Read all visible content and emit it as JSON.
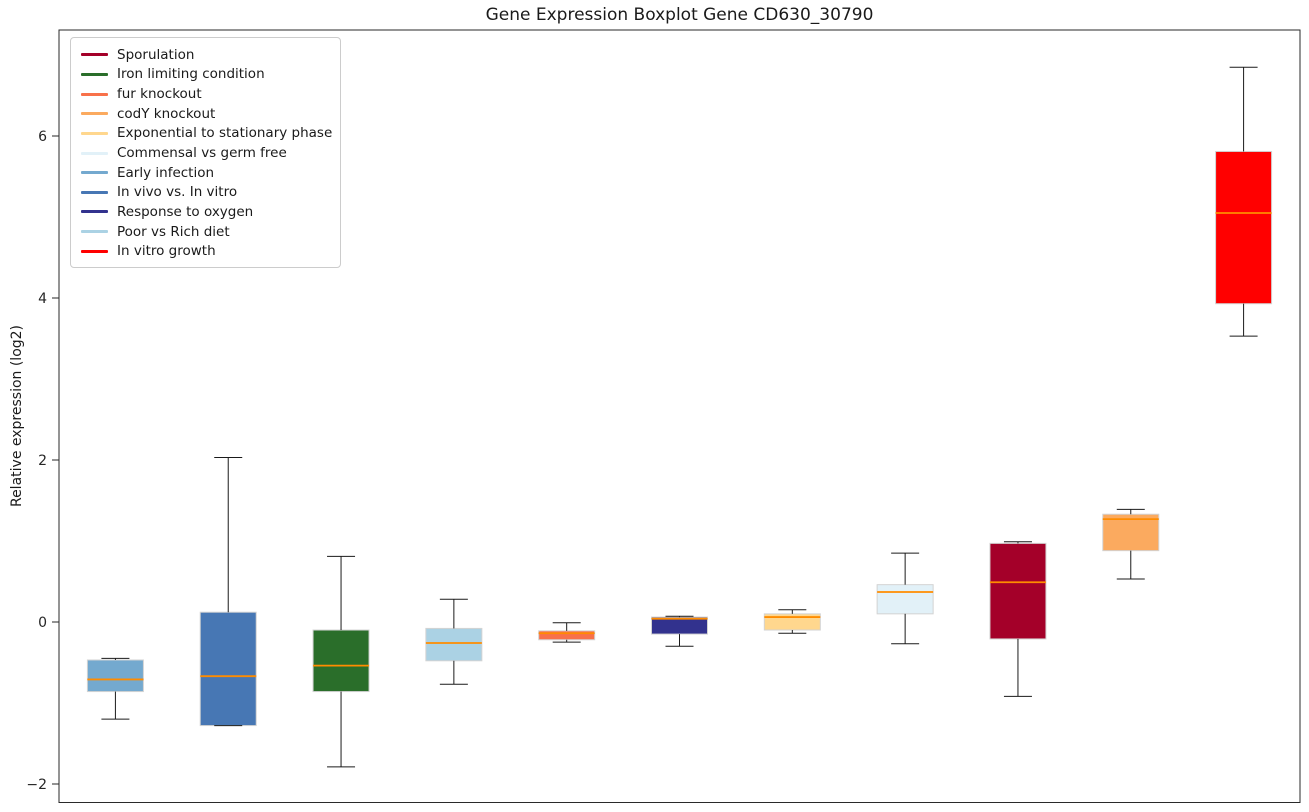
{
  "chart_data": {
    "type": "boxplot",
    "title": "Gene Expression Boxplot Gene CD630_30790",
    "ylabel": "Relative expression (log2)",
    "xlabel": "",
    "x_tick_labels": [],
    "grid": false,
    "ylim": [
      -2.23,
      7.31
    ],
    "yticks": [
      {
        "value": 6,
        "label": "6"
      },
      {
        "value": 4,
        "label": "4"
      },
      {
        "value": 2,
        "label": "2"
      },
      {
        "value": 0,
        "label": "0"
      },
      {
        "value": -2,
        "label": "−2"
      }
    ],
    "style": {
      "median_color": "#ff8c00",
      "box_edge_color": "#d3d3d3",
      "whisker_color": "#1a1a1a",
      "spine_color": "#2a2a2a",
      "tick_label_color": "#262626",
      "background": "#ffffff"
    },
    "legend": {
      "position": "upper left",
      "items": [
        {
          "label": "Sporulation",
          "color": "#a40029"
        },
        {
          "label": "Iron limiting condition",
          "color": "#2a6e2a"
        },
        {
          "label": "fur knockout",
          "color": "#f8714a"
        },
        {
          "label": "codY knockout",
          "color": "#fbaa5f"
        },
        {
          "label": "Exponential to stationary phase",
          "color": "#ffd78e"
        },
        {
          "label": "Commensal vs germ free",
          "color": "#e2f1f8"
        },
        {
          "label": "Early infection",
          "color": "#74a9cf"
        },
        {
          "label": "In vivo vs. In vitro",
          "color": "#4777b4"
        },
        {
          "label": "Response to oxygen",
          "color": "#32328e"
        },
        {
          "label": "Poor vs Rich diet",
          "color": "#abd2e4"
        },
        {
          "label": "In vitro growth",
          "color": "#ff0000"
        }
      ]
    },
    "boxes": [
      {
        "label": "Early infection",
        "color": "#74a9cf",
        "whisker_low": -1.2,
        "q1": -0.86,
        "median": -0.71,
        "q3": -0.47,
        "whisker_high": -0.45
      },
      {
        "label": "In vivo vs. In vitro",
        "color": "#4777b4",
        "whisker_low": -1.28,
        "q1": -1.28,
        "median": -0.67,
        "q3": 0.12,
        "whisker_high": 2.03
      },
      {
        "label": "Iron limiting condition",
        "color": "#2a6e2a",
        "whisker_low": -1.79,
        "q1": -0.86,
        "median": -0.54,
        "q3": -0.1,
        "whisker_high": 0.81
      },
      {
        "label": "Poor vs Rich diet",
        "color": "#abd2e4",
        "whisker_low": -0.77,
        "q1": -0.48,
        "median": -0.26,
        "q3": -0.08,
        "whisker_high": 0.28
      },
      {
        "label": "fur knockout",
        "color": "#f8714a",
        "whisker_low": -0.25,
        "q1": -0.22,
        "median": -0.14,
        "q3": -0.11,
        "whisker_high": -0.01
      },
      {
        "label": "Response to oxygen",
        "color": "#32328e",
        "whisker_low": -0.3,
        "q1": -0.15,
        "median": 0.04,
        "q3": 0.06,
        "whisker_high": 0.07
      },
      {
        "label": "Exponential to stationary phase",
        "color": "#ffd78e",
        "whisker_low": -0.14,
        "q1": -0.1,
        "median": 0.06,
        "q3": 0.1,
        "whisker_high": 0.15
      },
      {
        "label": "Commensal vs germ free",
        "color": "#e2f1f8",
        "whisker_low": -0.27,
        "q1": 0.1,
        "median": 0.37,
        "q3": 0.46,
        "whisker_high": 0.85
      },
      {
        "label": "Sporulation",
        "color": "#a40029",
        "whisker_low": -0.92,
        "q1": -0.21,
        "median": 0.49,
        "q3": 0.97,
        "whisker_high": 0.99
      },
      {
        "label": "codY knockout",
        "color": "#fbaa5f",
        "whisker_low": 0.53,
        "q1": 0.88,
        "median": 1.27,
        "q3": 1.33,
        "whisker_high": 1.39
      },
      {
        "label": "In vitro growth",
        "color": "#ff0000",
        "whisker_low": 3.53,
        "q1": 3.93,
        "median": 5.05,
        "q3": 5.81,
        "whisker_high": 6.85
      }
    ]
  }
}
